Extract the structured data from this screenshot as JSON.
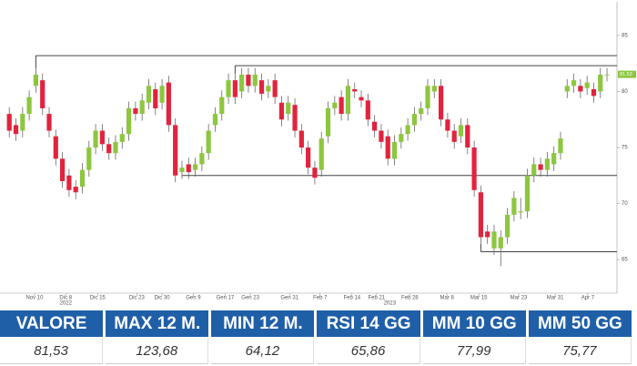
{
  "chart_data": {
    "type": "candlestick",
    "open": [
      78,
      77,
      76.5,
      78,
      80.5,
      81,
      78,
      76,
      74,
      72.5,
      71.5,
      71.5,
      73,
      75,
      76.5,
      75.3,
      74.5,
      75.5,
      76.2,
      78.5,
      78,
      79,
      80.2,
      79,
      80.8,
      77,
      72.8,
      73.5,
      73,
      73.5,
      74.5,
      77,
      78,
      79.5,
      81,
      80,
      81.5,
      80.5,
      81,
      80,
      81,
      79,
      78,
      78.8,
      76.5,
      75,
      73.2,
      73,
      76,
      78.5,
      79.5,
      78,
      80.2,
      79.5,
      79.2,
      77.3,
      76.5,
      76,
      74,
      75.5,
      76.2,
      77,
      78,
      78.5,
      80,
      80.5,
      77.5,
      76.5,
      76,
      77,
      75,
      71,
      67.5,
      66,
      66,
      67,
      69,
      69.2,
      69.3,
      72.5,
      73.5,
      73,
      73.5,
      74.5,
      80,
      80.5,
      80.5,
      80.3,
      80.2,
      80,
      81.5
    ],
    "high": [
      78.6,
      77.6,
      78.6,
      80.1,
      82.1,
      81.6,
      78.6,
      76.6,
      74.6,
      73.1,
      72.1,
      73.6,
      75.6,
      77.1,
      77.1,
      75.9,
      76.1,
      76.8,
      79.1,
      79.1,
      79.8,
      81.1,
      80.8,
      81.1,
      81.4,
      77.6,
      73.8,
      74.1,
      74.1,
      75.1,
      77.1,
      78.6,
      80.1,
      81.6,
      81.6,
      82.1,
      82.1,
      82.1,
      81.6,
      81.1,
      81.6,
      79.6,
      79.6,
      79.4,
      77.1,
      75.6,
      73.8,
      76.4,
      79.1,
      79.6,
      80.1,
      81.1,
      80.8,
      80.1,
      79.8,
      77.9,
      77.1,
      76.6,
      76.1,
      76.8,
      77.6,
      78.6,
      79.1,
      81.1,
      81.1,
      81.1,
      78.1,
      77.1,
      77.6,
      77.6,
      75.6,
      71.6,
      68.1,
      68.1,
      67.6,
      69.6,
      71.1,
      70.5,
      73.1,
      74.1,
      74.1,
      74.6,
      75.1,
      76.4,
      81.1,
      81.6,
      81.1,
      81.4,
      80.8,
      82.1,
      82.1
    ],
    "low": [
      75.9,
      75.6,
      75.9,
      77.4,
      79.9,
      77.9,
      75.9,
      73.4,
      71.4,
      70.6,
      70.4,
      70.9,
      72.4,
      74.4,
      74.7,
      73.9,
      73.9,
      74.9,
      75.6,
      77.4,
      77.4,
      78.4,
      77.9,
      78.4,
      76.4,
      71.9,
      72.2,
      72.2,
      72.4,
      72.9,
      73.9,
      76.4,
      77.4,
      78.9,
      78.9,
      79.4,
      79.9,
      79.9,
      79.2,
      79.4,
      78.9,
      76.9,
      77.4,
      75.9,
      74.4,
      72.6,
      71.7,
      72.4,
      75.4,
      77.9,
      77.4,
      77.4,
      79.4,
      78.6,
      76.9,
      75.9,
      74.9,
      73.4,
      73.4,
      74.9,
      75.6,
      76.4,
      77.4,
      77.9,
      79.4,
      76.9,
      75.9,
      74.9,
      75.4,
      74.4,
      70.6,
      66.4,
      66.4,
      65.4,
      64.4,
      66.4,
      68.4,
      68.6,
      68.7,
      71.9,
      72.4,
      72.4,
      72.9,
      73.9,
      79.4,
      79.9,
      79.4,
      79.7,
      79.0,
      79.4,
      80.9
    ],
    "close": [
      76.5,
      76.2,
      78,
      79.5,
      81.5,
      78.5,
      76.5,
      74,
      72,
      71.2,
      71,
      73,
      75,
      76.5,
      75.3,
      74.5,
      75.5,
      76.2,
      78.5,
      78,
      79.2,
      80.5,
      78.5,
      80.5,
      77,
      72.5,
      73.2,
      72.8,
      73.5,
      74.5,
      76.5,
      78,
      79.5,
      81,
      79.5,
      81.5,
      80.5,
      81.5,
      79.8,
      80.5,
      79.5,
      77.5,
      79,
      76.5,
      75,
      73.2,
      72.3,
      75.8,
      78.5,
      79,
      78,
      80.5,
      80,
      79.2,
      77.5,
      76.5,
      75.5,
      74,
      75.5,
      76.2,
      77,
      78,
      78.5,
      80.5,
      80.5,
      77.5,
      76.5,
      75.5,
      77,
      75,
      71.2,
      67,
      67,
      67.5,
      67,
      69,
      70.5,
      69.3,
      72.5,
      73.5,
      73,
      74,
      74.5,
      75.8,
      80.5,
      81,
      80,
      80.8,
      79.6,
      81.5,
      81.5
    ],
    "up_color": "#8dc63f",
    "down_color": "#e2233d",
    "levels": [
      {
        "value": 83.2,
        "from": 4
      },
      {
        "value": 82.3,
        "from": 34
      },
      {
        "value": 72.5,
        "from": 26
      },
      {
        "value": 65.7,
        "from": 71
      }
    ],
    "last_price": {
      "value": 81.53,
      "label": "81,53"
    },
    "xlim": [
      -1.4,
      91.5
    ],
    "xticks": [
      {
        "value": 3.8,
        "label": "Nov 10"
      },
      {
        "value": 8.5,
        "label": "Dic 8"
      },
      {
        "value": 13.3,
        "label": "Dic 15"
      },
      {
        "value": 19.2,
        "label": "Dic 23"
      },
      {
        "value": 23,
        "label": "Dic 30"
      },
      {
        "value": 27.7,
        "label": "Gen 9"
      },
      {
        "value": 32.5,
        "label": "Gen 17"
      },
      {
        "value": 36.3,
        "label": "Gen 23"
      },
      {
        "value": 42.2,
        "label": "Gen 31"
      },
      {
        "value": 46.8,
        "label": "Feb 7"
      },
      {
        "value": 51.6,
        "label": "Feb 14"
      },
      {
        "value": 55.3,
        "label": "Feb 21"
      },
      {
        "value": 60.3,
        "label": "Feb 28"
      },
      {
        "value": 65.9,
        "label": "Mar 8"
      },
      {
        "value": 70.7,
        "label": "Mar 15"
      },
      {
        "value": 76.7,
        "label": "Mar 23"
      },
      {
        "value": 82.2,
        "label": "Mar 31"
      },
      {
        "value": 87.1,
        "label": "Apr 7"
      }
    ],
    "year_labels": [
      {
        "value": 8.5,
        "label": "2022"
      },
      {
        "value": 57.3,
        "label": "2023"
      }
    ],
    "ylim": [
      62,
      88
    ],
    "yticks": [
      65,
      70,
      75,
      80,
      85
    ]
  },
  "table": {
    "header": [
      "VALORE",
      "MAX 12 M.",
      "MIN 12 M.",
      "RSI 14 GG",
      "MM 10 GG",
      "MM 50 GG"
    ],
    "rows": [
      [
        "81,53",
        "123,68",
        "64,12",
        "65,86",
        "77,99",
        "75,77"
      ]
    ]
  }
}
